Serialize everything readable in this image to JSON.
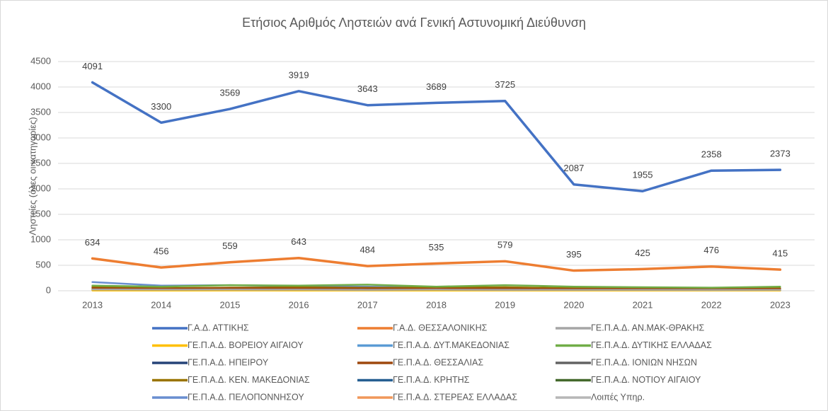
{
  "chart_data": {
    "type": "line",
    "title": "Ετήσιος Αριθμός Ληστειών ανά Γενική Αστυνομική Διεύθυνση",
    "y_label": "Ληστείες (όλες οι κατηγορίες)",
    "categories": [
      "2013",
      "2014",
      "2015",
      "2016",
      "2017",
      "2018",
      "2019",
      "2020",
      "2021",
      "2022",
      "2023"
    ],
    "ylim": [
      0,
      4500
    ],
    "yticks": [
      0,
      500,
      1000,
      1500,
      2000,
      2500,
      3000,
      3500,
      4000,
      4500
    ],
    "grid": true,
    "legend": "bottom",
    "series": [
      {
        "name": "Γ.Α.Δ. ΑΤΤΙΚΗΣ",
        "color": "#4472c4",
        "show_labels": true,
        "values": [
          4091,
          3300,
          3569,
          3919,
          3643,
          3689,
          3725,
          2087,
          1955,
          2358,
          2373
        ]
      },
      {
        "name": "Γ.Α.Δ. ΘΕΣΣΑΛΟΝΙΚΗΣ",
        "color": "#ed7d31",
        "show_labels": true,
        "values": [
          634,
          456,
          559,
          643,
          484,
          535,
          579,
          395,
          425,
          476,
          415
        ]
      },
      {
        "name": "ΓΕ.Π.Α.Δ. ΑΝ.ΜΑΚ-ΘΡΑΚΗΣ",
        "color": "#a5a5a5",
        "values": [
          25,
          20,
          22,
          20,
          18,
          20,
          18,
          15,
          15,
          14,
          15
        ]
      },
      {
        "name": "ΓΕ.Π.Α.Δ. ΒΟΡΕΙΟΥ ΑΙΓΑΙΟΥ",
        "color": "#ffc000",
        "values": [
          5,
          4,
          5,
          4,
          5,
          4,
          5,
          3,
          4,
          3,
          4
        ]
      },
      {
        "name": "ΓΕ.Π.Α.Δ. ΔΥΤ.ΜΑΚΕΔΟΝΙΑΣ",
        "color": "#5b9bd5",
        "values": [
          10,
          8,
          10,
          9,
          8,
          9,
          8,
          7,
          6,
          7,
          6
        ]
      },
      {
        "name": "ΓΕ.Π.Α.Δ. ΔΥΤΙΚΗΣ ΕΛΛΑΔΑΣ",
        "color": "#70ad47",
        "values": [
          100,
          80,
          110,
          100,
          120,
          80,
          110,
          80,
          70,
          60,
          80
        ]
      },
      {
        "name": "ΓΕ.Π.Α.Δ. ΗΠΕΙΡΟΥ",
        "color": "#264478",
        "values": [
          15,
          12,
          14,
          13,
          12,
          12,
          11,
          10,
          10,
          9,
          10
        ]
      },
      {
        "name": "ΓΕ.Π.Α.Δ. ΘΕΣΣΑΛΙΑΣ",
        "color": "#9e480e",
        "values": [
          50,
          40,
          50,
          45,
          45,
          40,
          45,
          35,
          35,
          30,
          35
        ]
      },
      {
        "name": "ΓΕ.Π.Α.Δ. ΙΟΝΙΩΝ ΝΗΣΩΝ",
        "color": "#636363",
        "values": [
          15,
          14,
          15,
          13,
          14,
          12,
          13,
          10,
          11,
          10,
          11
        ]
      },
      {
        "name": "ΓΕ.Π.Α.Δ. ΚΕΝ. ΜΑΚΕΔΟΝΙΑΣ",
        "color": "#997300",
        "values": [
          80,
          50,
          60,
          70,
          60,
          60,
          70,
          50,
          50,
          45,
          50
        ]
      },
      {
        "name": "ΓΕ.Π.Α.Δ. ΚΡΗΤΗΣ",
        "color": "#255e91",
        "values": [
          60,
          40,
          50,
          60,
          50,
          45,
          50,
          40,
          40,
          35,
          40
        ]
      },
      {
        "name": "ΓΕ.Π.Α.Δ. ΝΟΤΙΟΥ ΑΙΓΑΙΟΥ",
        "color": "#43682b",
        "values": [
          30,
          25,
          35,
          30,
          30,
          25,
          30,
          20,
          20,
          20,
          25
        ]
      },
      {
        "name": "ΓΕ.Π.Α.Δ. ΠΕΛΟΠΟΝΝΗΣΟΥ",
        "color": "#698ed0",
        "values": [
          170,
          100,
          110,
          90,
          80,
          70,
          60,
          50,
          40,
          40,
          50
        ]
      },
      {
        "name": "ΓΕ.Π.Α.Δ. ΣΤΕΡΕΑΣ ΕΛΛΑΔΑΣ",
        "color": "#f1975a",
        "values": [
          60,
          50,
          60,
          55,
          55,
          50,
          55,
          45,
          45,
          40,
          45
        ]
      },
      {
        "name": "Λοιπές Υπηρ.",
        "color": "#b7b7b7",
        "values": [
          5,
          4,
          5,
          4,
          4,
          3,
          4,
          3,
          3,
          3,
          3
        ]
      }
    ]
  }
}
